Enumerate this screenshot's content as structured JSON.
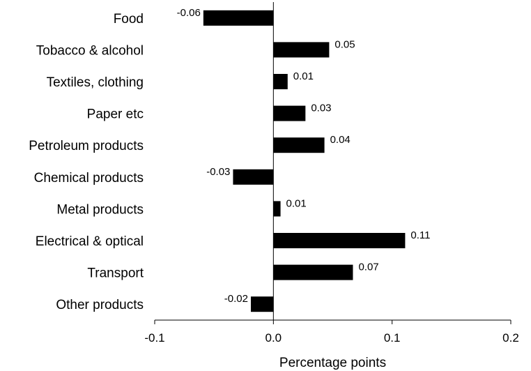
{
  "chart_data": {
    "type": "bar",
    "orientation": "horizontal",
    "categories": [
      "Food",
      "Tobacco & alcohol",
      "Textiles, clothing",
      "Paper etc",
      "Petroleum products",
      "Chemical products",
      "Metal products",
      "Electrical & optical",
      "Transport",
      "Other products"
    ],
    "values": [
      -0.059,
      0.047,
      0.012,
      0.027,
      0.043,
      -0.034,
      0.006,
      0.111,
      0.067,
      -0.019
    ],
    "value_labels": [
      "-0.06",
      "0.05",
      "0.01",
      "0.03",
      "0.04",
      "-0.03",
      "0.01",
      "0.11",
      "0.07",
      "-0.02"
    ],
    "x_ticks": [
      -0.1,
      0.0,
      0.1,
      0.2
    ],
    "x_tick_labels": [
      "-0.1",
      "0.0",
      "0.1",
      "0.2"
    ],
    "xlim": [
      -0.1,
      0.2
    ],
    "xlabel": "Percentage points",
    "bar_color": "#000000",
    "grid": false,
    "legend": "none"
  }
}
